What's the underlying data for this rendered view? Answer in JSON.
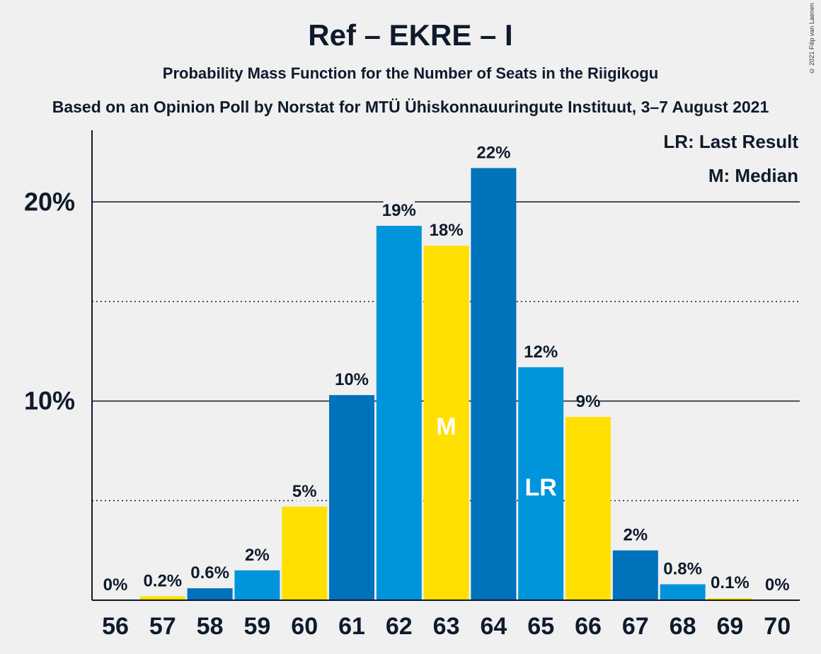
{
  "header": {
    "title": "Ref – EKRE – I",
    "subtitle": "Probability Mass Function for the Number of Seats in the Riigikogu",
    "subtitle2": "Based on an Opinion Poll by Norstat for MTÜ Ühiskonnauuringute Instituut, 3–7 August 2021",
    "copyright": "© 2021 Filip van Laenen"
  },
  "legend": {
    "lr": "LR: Last Result",
    "m": "M: Median"
  },
  "chart_data": {
    "type": "bar",
    "categories": [
      "56",
      "57",
      "58",
      "59",
      "60",
      "61",
      "62",
      "63",
      "64",
      "65",
      "66",
      "67",
      "68",
      "69",
      "70"
    ],
    "values": [
      0,
      0.2,
      0.6,
      1.5,
      4.7,
      10.3,
      18.8,
      17.8,
      21.7,
      11.7,
      9.2,
      2.5,
      0.8,
      0.1,
      0
    ],
    "labels": [
      "0%",
      "0.2%",
      "0.6%",
      "2%",
      "5%",
      "10%",
      "19%",
      "18%",
      "22%",
      "12%",
      "9%",
      "2%",
      "0.8%",
      "0.1%",
      "0%"
    ],
    "bar_colors": [
      "#0072bb",
      "#ffe000",
      "#0072bb",
      "#0095db",
      "#ffe000",
      "#0072bb",
      "#0095db",
      "#ffe000",
      "#0072bb",
      "#0095db",
      "#ffe000",
      "#0072bb",
      "#0095db",
      "#ffe000",
      "#0072bb"
    ],
    "ylim": [
      0,
      23.6
    ],
    "y_ticks": [
      {
        "value": 10,
        "label": "10%"
      },
      {
        "value": 20,
        "label": "20%"
      }
    ],
    "minor_gridlines": [
      5,
      15
    ],
    "grid": true,
    "legend_position": "top-right",
    "median_seat": "63",
    "median_marker": "M",
    "last_result_seat": "65",
    "last_result_marker": "LR"
  }
}
